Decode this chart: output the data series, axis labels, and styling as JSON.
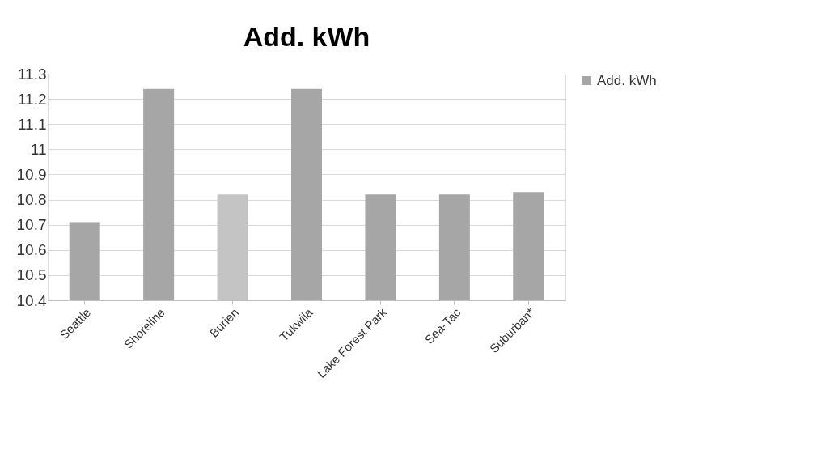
{
  "chart_data": {
    "type": "bar",
    "title": "Add. kWh",
    "categories": [
      "Seattle",
      "Shoreline",
      "Burien",
      "Tukwila",
      "Lake Forest Park",
      "Sea-Tac",
      "Suburban*"
    ],
    "series": [
      {
        "name": "Add. kWh",
        "color": "#a6a6a6",
        "colors": [
          "#a6a6a6",
          "#a6a6a6",
          "#c4c4c4",
          "#a6a6a6",
          "#a6a6a6",
          "#a6a6a6",
          "#a6a6a6"
        ],
        "values": [
          10.71,
          11.24,
          10.82,
          11.24,
          10.82,
          10.82,
          10.83
        ]
      }
    ],
    "ylim": [
      10.4,
      11.3
    ],
    "yticks": [
      10.4,
      10.5,
      10.6,
      10.7,
      10.8,
      10.9,
      11,
      11.1,
      11.2,
      11.3
    ],
    "grid": "y",
    "legend": "right"
  }
}
